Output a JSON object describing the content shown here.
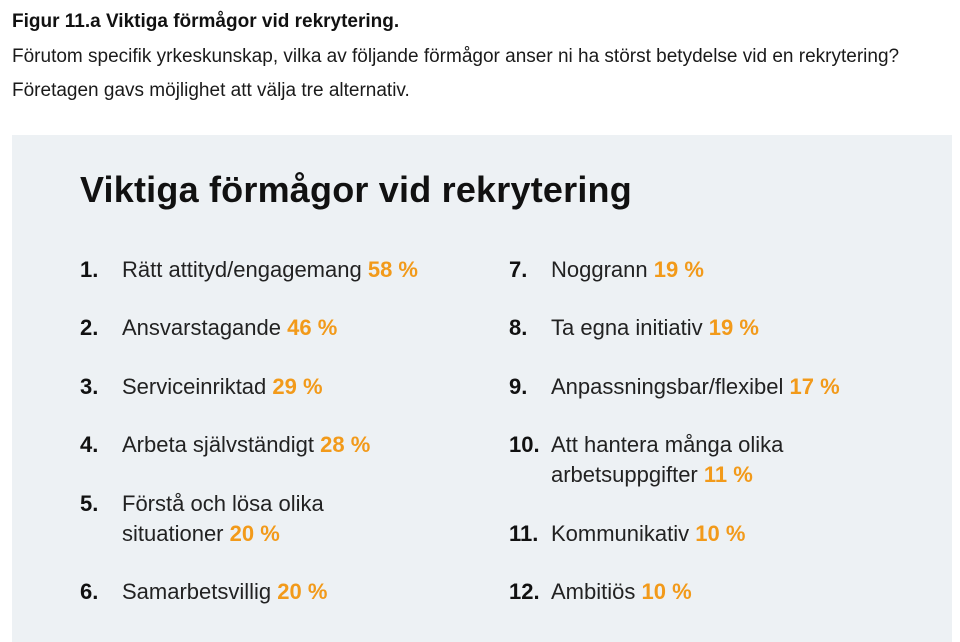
{
  "caption": {
    "title": "Figur 11.a Viktiga förmågor vid rekrytering.",
    "text": "Förutom specifik yrkeskunskap, vilka av följande förmågor anser ni ha störst betydelse vid en rekrytering? Företagen gavs möjlighet att välja tre alternativ."
  },
  "panel": {
    "title": "Viktiga förmågor vid rekrytering"
  },
  "accent_color": "#f29a1a",
  "left_items": [
    {
      "num": "1.",
      "label": "Rätt attityd/engagemang",
      "pct": "58 %"
    },
    {
      "num": "2.",
      "label": "Ansvarstagande",
      "pct": "46 %"
    },
    {
      "num": "3.",
      "label": "Serviceinriktad",
      "pct": "29 %"
    },
    {
      "num": "4.",
      "label": "Arbeta självständigt",
      "pct": "28 %"
    },
    {
      "num": "5.",
      "label": "Förstå och lösa olika situationer",
      "pct": "20 %"
    },
    {
      "num": "6.",
      "label": "Samarbetsvillig",
      "pct": "20 %"
    }
  ],
  "right_items": [
    {
      "num": "7.",
      "label": "Noggrann",
      "pct": "19 %"
    },
    {
      "num": "8.",
      "label": "Ta egna initiativ",
      "pct": "19 %"
    },
    {
      "num": "9.",
      "label": "Anpassningsbar/flexibel",
      "pct": "17 %"
    },
    {
      "num": "10.",
      "label": "Att hantera många olika arbetsuppgifter",
      "pct": "11 %"
    },
    {
      "num": "11.",
      "label": "Kommunikativ",
      "pct": "10 %"
    },
    {
      "num": "12.",
      "label": "Ambitiös",
      "pct": "10 %"
    }
  ]
}
